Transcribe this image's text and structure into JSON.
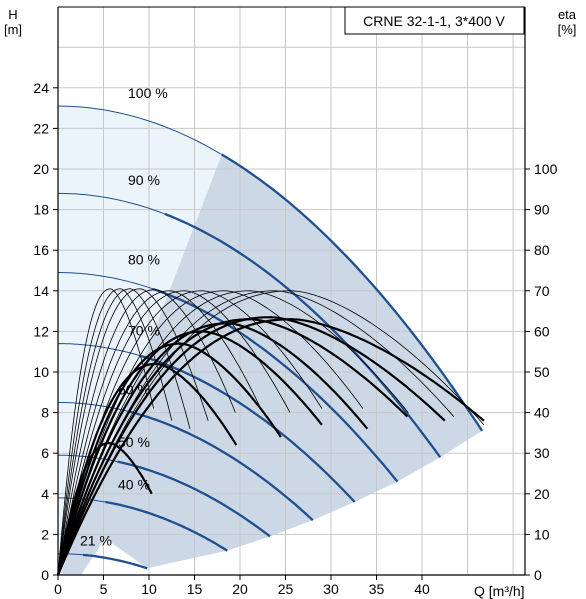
{
  "chart_data": {
    "type": "line",
    "title": "CRNE 32-1-1, 3*400 V",
    "xlabel": "Q [m³/h]",
    "ylabel_left_name": "H",
    "ylabel_left_unit": "[m]",
    "ylabel_right_name": "eta",
    "ylabel_right_unit": "[%]",
    "xlim": [
      0,
      50
    ],
    "ylim": [
      0,
      27
    ],
    "eta_lim": [
      0,
      135
    ],
    "x_ticks": [
      0,
      5,
      10,
      15,
      20,
      25,
      30,
      35,
      40
    ],
    "y_ticks": [
      0,
      2,
      4,
      6,
      8,
      10,
      12,
      14,
      16,
      18,
      20,
      22,
      24
    ],
    "eta_ticks": [
      0,
      10,
      20,
      30,
      40,
      50,
      60,
      70,
      80,
      90,
      100
    ],
    "grid": true,
    "speed_curves": [
      {
        "label": "100 %",
        "h0": 23.1,
        "qmax": 46.6,
        "hend": 7.1
      },
      {
        "label": "90 %",
        "h0": 18.8,
        "qmax": 42.0,
        "hend": 5.8
      },
      {
        "label": "80 %",
        "h0": 14.9,
        "qmax": 37.3,
        "hend": 4.6
      },
      {
        "label": "70 %",
        "h0": 11.4,
        "qmax": 32.6,
        "hend": 3.6
      },
      {
        "label": "60 %",
        "h0": 8.5,
        "qmax": 28.0,
        "hend": 2.7
      },
      {
        "label": "50 %",
        "h0": 5.9,
        "qmax": 23.3,
        "hend": 1.9
      },
      {
        "label": "40 %",
        "h0": 3.8,
        "qmax": 18.6,
        "hend": 1.2
      },
      {
        "label": "21 %",
        "h0": 1.05,
        "qmax": 9.8,
        "hend": 0.33
      }
    ],
    "efficiency_curves": [
      {
        "qmax": 10.5,
        "peak": 70.5,
        "end": 41,
        "weight": "thin"
      },
      {
        "qmax": 12.5,
        "peak": 70.5,
        "end": 38,
        "weight": "thin"
      },
      {
        "qmax": 14.5,
        "peak": 70.5,
        "end": 36,
        "weight": "thin"
      },
      {
        "qmax": 16.5,
        "peak": 70.5,
        "end": 38,
        "weight": "thin"
      },
      {
        "qmax": 19.5,
        "peak": 70.3,
        "end": 40,
        "weight": "thin"
      },
      {
        "qmax": 22.5,
        "peak": 70.0,
        "end": 40,
        "weight": "thin"
      },
      {
        "qmax": 25.5,
        "peak": 70.0,
        "end": 40,
        "weight": "thin"
      },
      {
        "qmax": 29.0,
        "peak": 70.0,
        "end": 41,
        "weight": "thin"
      },
      {
        "qmax": 33.5,
        "peak": 70.0,
        "end": 41,
        "weight": "thin"
      },
      {
        "qmax": 38.5,
        "peak": 70.0,
        "end": 40,
        "weight": "thin"
      },
      {
        "qmax": 43.5,
        "peak": 70.0,
        "end": 39,
        "weight": "thin"
      },
      {
        "qmax": 46.8,
        "peak": 70.0,
        "end": 37,
        "weight": "thin"
      },
      {
        "qmax": 10.3,
        "peak": 32.5,
        "end": 20,
        "weight": "bold"
      },
      {
        "qmax": 19.6,
        "peak": 52.0,
        "end": 32,
        "weight": "bold"
      },
      {
        "qmax": 24.5,
        "peak": 57.0,
        "end": 34,
        "weight": "bold"
      },
      {
        "qmax": 29.0,
        "peak": 60.0,
        "end": 37,
        "weight": "bold"
      },
      {
        "qmax": 34.0,
        "peak": 62.0,
        "end": 36,
        "weight": "bold"
      },
      {
        "qmax": 38.4,
        "peak": 63.0,
        "end": 39,
        "weight": "bold"
      },
      {
        "qmax": 42.5,
        "peak": 63.5,
        "end": 38,
        "weight": "bold"
      },
      {
        "qmax": 46.8,
        "peak": 63.0,
        "end": 38,
        "weight": "bold"
      }
    ],
    "colors": {
      "curve": "#1e4f8f",
      "area_dark": "#ccd8e6",
      "area_light": "#ebf3fb",
      "grid": "#c8c8c8"
    }
  }
}
